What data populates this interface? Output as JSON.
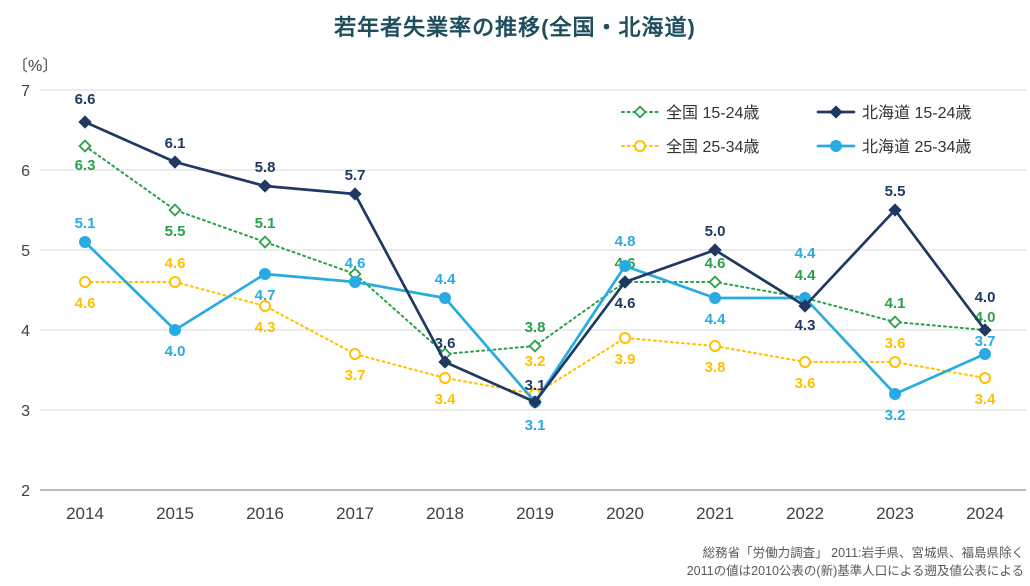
{
  "title": "若年者失業率の推移(全国・北海道)",
  "y_unit_label": "〔%〕",
  "footer": {
    "line1": "総務省「労働力調査」 2011:岩手県、宮城県、福島県除く",
    "line2": "2011の値は2010公表の(新)基準人口による遡及値公表による"
  },
  "chart_data": {
    "type": "line",
    "x": [
      "2014",
      "2015",
      "2016",
      "2017",
      "2018",
      "2019",
      "2020",
      "2021",
      "2022",
      "2023",
      "2024"
    ],
    "ylim": [
      2,
      7
    ],
    "yticks": [
      2,
      3,
      4,
      5,
      6,
      7
    ],
    "grid": true,
    "legend_position": "top-right",
    "series": [
      {
        "name": "全国 15-24歳",
        "color": "#2AA148",
        "line": "dotted",
        "marker": "diamond-open",
        "values": [
          6.3,
          5.5,
          5.1,
          4.7,
          3.7,
          3.8,
          4.6,
          4.6,
          4.4,
          4.1,
          4.0
        ],
        "label_show": [
          true,
          true,
          true,
          false,
          false,
          true,
          true,
          true,
          true,
          true,
          true
        ],
        "label_dy": [
          24,
          26,
          -14,
          0,
          0,
          -14,
          -14,
          -14,
          -18,
          -14,
          -8
        ]
      },
      {
        "name": "北海道 15-24歳",
        "color": "#1F3864",
        "line": "solid",
        "marker": "diamond-filled",
        "values": [
          6.6,
          6.1,
          5.8,
          5.7,
          3.6,
          3.1,
          4.6,
          5.0,
          4.3,
          5.5,
          4.0
        ],
        "label_show": [
          true,
          true,
          true,
          true,
          true,
          true,
          true,
          true,
          true,
          true,
          true
        ],
        "label_dy": [
          -18,
          -14,
          -14,
          -14,
          -14,
          -12,
          26,
          -14,
          24,
          -14,
          -28
        ]
      },
      {
        "name": "全国 25-34歳",
        "color": "#FFC000",
        "line": "dotted",
        "marker": "circle-open",
        "values": [
          4.6,
          4.6,
          4.3,
          3.7,
          3.4,
          3.2,
          3.9,
          3.8,
          3.6,
          3.6,
          3.4
        ],
        "label_show": [
          true,
          true,
          true,
          true,
          true,
          true,
          true,
          true,
          true,
          true,
          true
        ],
        "label_dy": [
          26,
          -14,
          26,
          26,
          26,
          -28,
          26,
          26,
          26,
          -14,
          26
        ]
      },
      {
        "name": "北海道 25-34歳",
        "color": "#29ABE2",
        "line": "solid",
        "marker": "circle-filled",
        "values": [
          5.1,
          4.0,
          4.7,
          4.6,
          4.4,
          3.1,
          4.8,
          4.4,
          4.4,
          3.2,
          3.7
        ],
        "label_show": [
          true,
          true,
          true,
          true,
          true,
          true,
          true,
          true,
          true,
          true,
          true
        ],
        "label_dy": [
          -14,
          26,
          26,
          -14,
          -14,
          28,
          -20,
          26,
          -40,
          26,
          -8
        ]
      }
    ]
  }
}
